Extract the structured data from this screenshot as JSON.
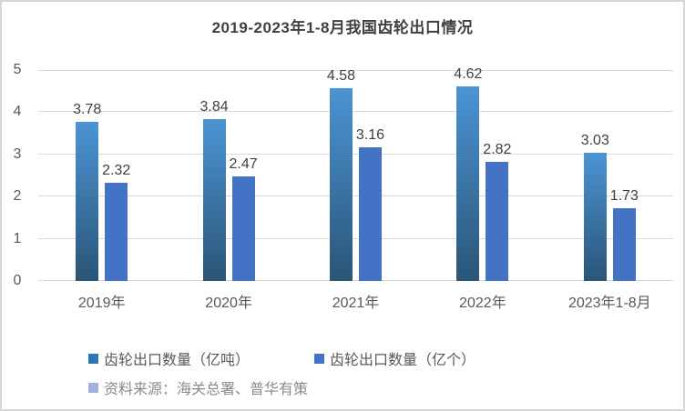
{
  "title": "2019-2023年1-8月我国齿轮出口情况",
  "chart_data": {
    "type": "bar",
    "categories": [
      "2019年",
      "2020年",
      "2021年",
      "2022年",
      "2023年1-8月"
    ],
    "series": [
      {
        "name": "齿轮出口数量（亿吨）",
        "values": [
          3.78,
          3.84,
          4.58,
          4.62,
          3.03
        ],
        "color_top": "#4B94D4",
        "color_bottom": "#2A5577",
        "legend_color": "#2E75B6"
      },
      {
        "name": "齿轮出口数量（亿个）",
        "values": [
          2.32,
          2.47,
          3.16,
          2.82,
          1.73
        ],
        "color": "#4472C4",
        "legend_color": "#4472C4"
      }
    ],
    "data_labels": [
      "3.78",
      "3.84",
      "4.58",
      "4.62",
      "3.03",
      "2.32",
      "2.47",
      "3.16",
      "2.82",
      "1.73"
    ],
    "ylim": [
      0,
      5
    ],
    "yticks": [
      0,
      1,
      2,
      3,
      4,
      5
    ],
    "grid": true,
    "legend_position": "bottom"
  },
  "source_note": {
    "label": "资料来源：海关总署、普华有策",
    "swatch_color": "#A0B1DD"
  },
  "colors": {
    "gridline": "#d9d9d9",
    "frame_border": "#d6d6d6",
    "title_text": "#404040",
    "axis_text": "#595959",
    "data_label_text": "#404040",
    "source_text": "#8a8a8a"
  }
}
